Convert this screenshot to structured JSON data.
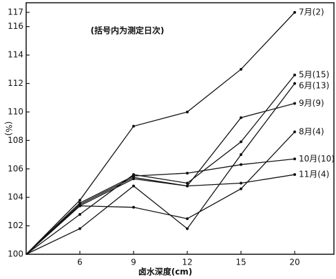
{
  "chart_data": {
    "type": "line",
    "annotation": "(括号内为测定日次)",
    "x_label": "卤水深度(cm)",
    "y_label": "(%)",
    "categories": [
      null,
      "6",
      "9",
      "12",
      "15",
      "20"
    ],
    "ylim": [
      100,
      117
    ],
    "yticks": [
      100,
      102,
      104,
      106,
      108,
      110,
      112,
      114,
      116,
      117
    ],
    "color": "#111111",
    "series": [
      {
        "name": "7月(2)",
        "values": [
          100,
          103.8,
          109,
          110,
          113,
          117
        ]
      },
      {
        "name": "5月(15)",
        "values": [
          100,
          102.8,
          105.6,
          105,
          107.9,
          112.6
        ]
      },
      {
        "name": "6月(13)",
        "values": [
          100,
          101.8,
          104.8,
          101.8,
          107,
          112
        ]
      },
      {
        "name": "9月(9)",
        "values": [
          100,
          103.4,
          105.3,
          104.8,
          109.6,
          110.6
        ]
      },
      {
        "name": "8月(4)",
        "values": [
          100,
          103.4,
          103.3,
          102.5,
          104.6,
          108.6
        ]
      },
      {
        "name": "10月(10)",
        "values": [
          100,
          103.6,
          105.5,
          105.7,
          106.3,
          106.7
        ]
      },
      {
        "name": "11月(4)",
        "values": [
          100,
          103.5,
          105.4,
          104.8,
          105,
          105.6
        ]
      }
    ]
  }
}
